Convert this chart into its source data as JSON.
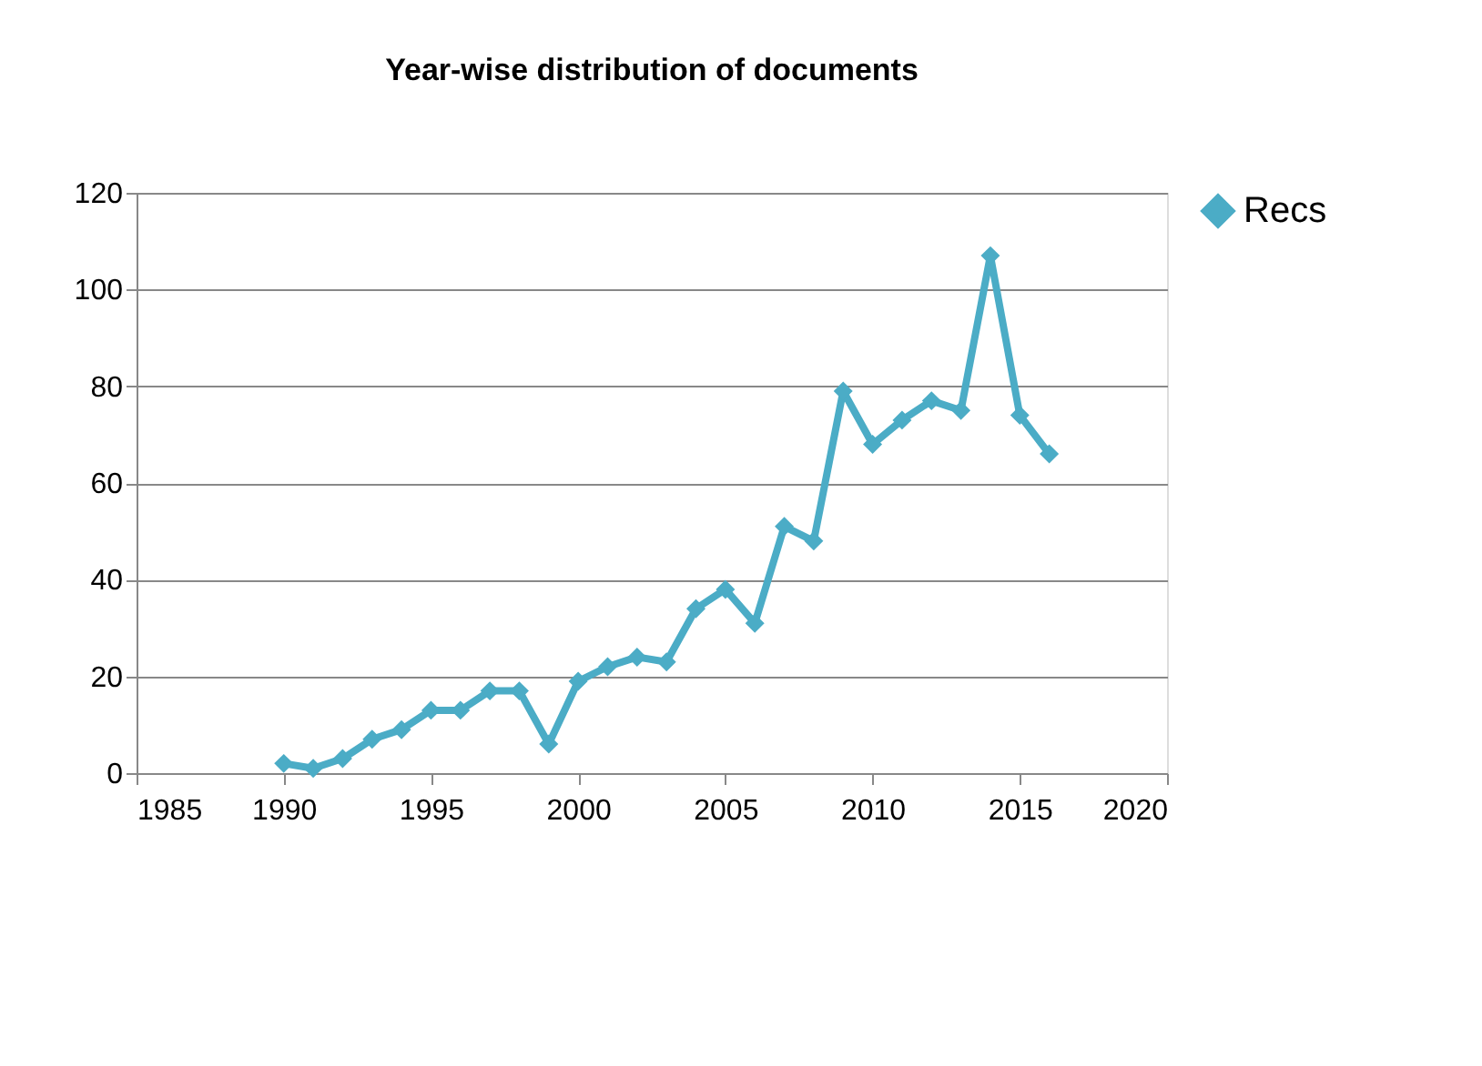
{
  "chart_data": {
    "type": "line",
    "title": "Year-wise distribution of documents",
    "x": [
      1990,
      1991,
      1992,
      1993,
      1994,
      1995,
      1996,
      1997,
      1998,
      1999,
      2000,
      2001,
      2002,
      2003,
      2004,
      2005,
      2006,
      2007,
      2008,
      2009,
      2010,
      2011,
      2012,
      2013,
      2014,
      2015,
      2016
    ],
    "series": [
      {
        "name": "Recs",
        "color": "#4bacc6",
        "values": [
          2,
          1,
          3,
          7,
          9,
          13,
          13,
          17,
          17,
          6,
          19,
          22,
          24,
          23,
          34,
          38,
          31,
          51,
          48,
          79,
          68,
          73,
          77,
          75,
          107,
          74,
          66
        ]
      }
    ],
    "xlim": [
      1985,
      2020
    ],
    "xticks": [
      1985,
      1990,
      1995,
      2000,
      2005,
      2010,
      2015,
      2020
    ],
    "ylim": [
      0,
      120
    ],
    "yticks": [
      0,
      20,
      40,
      60,
      80,
      100,
      120
    ],
    "grid": "y",
    "legend": "right",
    "marker": "diamond",
    "line_style": "solid"
  }
}
